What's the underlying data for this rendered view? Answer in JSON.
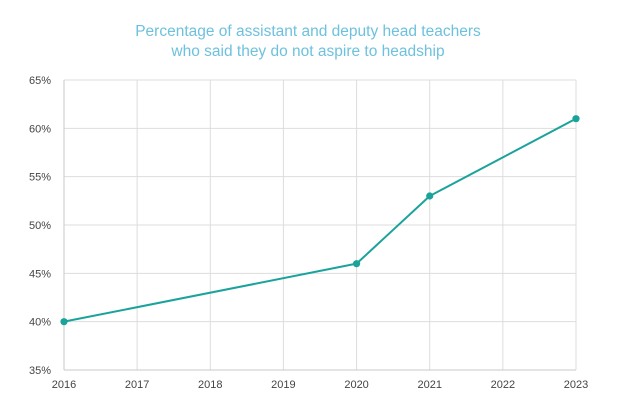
{
  "chart_data": {
    "type": "line",
    "title_lines": [
      "Percentage of assistant and deputy head teachers",
      "who said they do not aspire to headship"
    ],
    "xlabel": "",
    "ylabel": "",
    "x_ticks": [
      "2016",
      "2017",
      "2018",
      "2019",
      "2020",
      "2021",
      "2022",
      "2023"
    ],
    "y_ticks": [
      "35%",
      "40%",
      "45%",
      "50%",
      "55%",
      "60%",
      "65%"
    ],
    "xlim": [
      2016,
      2023
    ],
    "ylim": [
      35,
      65
    ],
    "grid": true,
    "series": [
      {
        "color": "#1aa39a",
        "points": [
          {
            "x": 2016,
            "y": 40
          },
          {
            "x": 2020,
            "y": 46
          },
          {
            "x": 2021,
            "y": 53
          },
          {
            "x": 2023,
            "y": 61
          }
        ]
      }
    ]
  }
}
